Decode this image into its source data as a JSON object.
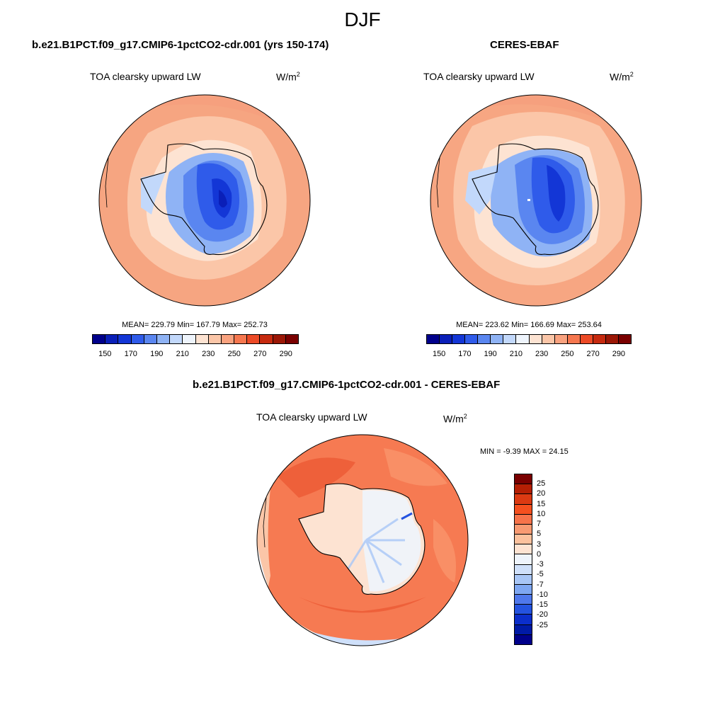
{
  "title": "DJF",
  "panels": [
    {
      "case_title": "b.e21.B1PCT.f09_g17.CMIP6-1pctCO2-cdr.001 (yrs 150-174)",
      "variable": "TOA clearsky upward LW",
      "units": "W/m",
      "units_sup": "2",
      "stats": "MEAN= 229.79  Min= 167.79  Max= 252.73"
    },
    {
      "case_title": "CERES-EBAF",
      "variable": "TOA clearsky upward LW",
      "units": "W/m",
      "units_sup": "2",
      "stats": "MEAN= 223.62  Min= 166.69  Max= 253.64"
    },
    {
      "case_title": "b.e21.B1PCT.f09_g17.CMIP6-1pctCO2-cdr.001 - CERES-EBAF",
      "variable": "TOA clearsky upward LW",
      "units": "W/m",
      "units_sup": "2",
      "stats": "MIN =  -9.39 MAX =  24.15"
    }
  ],
  "colorbar_abs": {
    "colors": [
      "#00008b",
      "#0a1fb8",
      "#1336d6",
      "#2f5bea",
      "#5a86f0",
      "#8fb3f5",
      "#c2d8fb",
      "#eef4fc",
      "#fde3d2",
      "#fbc6a8",
      "#f9a27f",
      "#f6774f",
      "#ec4a26",
      "#c62a0f",
      "#9b1706",
      "#7a0000"
    ],
    "labels": [
      "150",
      "170",
      "190",
      "210",
      "230",
      "250",
      "270",
      "290"
    ]
  },
  "colorbar_diff": {
    "colors": [
      "#7a0000",
      "#b51f04",
      "#dc3a12",
      "#f5501f",
      "#f7734a",
      "#f89a72",
      "#fbc19d",
      "#fde3d2",
      "#eef4fc",
      "#cfe0fa",
      "#a8c6f6",
      "#7ea7f2",
      "#4f78ec",
      "#2453e0",
      "#0b2ecb",
      "#001aa6",
      "#00008b"
    ],
    "labels": [
      "25",
      "20",
      "15",
      "10",
      "7",
      "5",
      "3",
      "0",
      "-3",
      "-5",
      "-7",
      "-10",
      "-15",
      "-20",
      "-25"
    ]
  }
}
